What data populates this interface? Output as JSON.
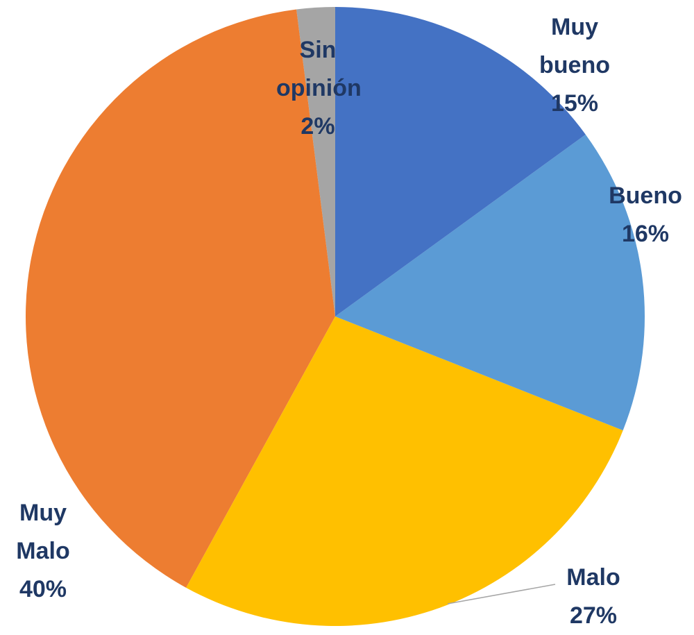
{
  "chart_data": {
    "type": "pie",
    "categories": [
      "Muy bueno",
      "Bueno",
      "Malo",
      "Muy Malo",
      "Sin opinión"
    ],
    "values": [
      15,
      16,
      27,
      40,
      2
    ],
    "value_labels": [
      "15%",
      "16%",
      "27%",
      "40%",
      "2%"
    ],
    "colors": [
      "#4472c4",
      "#5b9bd5",
      "#ffc000",
      "#ed7d31",
      "#a5a5a5"
    ]
  }
}
